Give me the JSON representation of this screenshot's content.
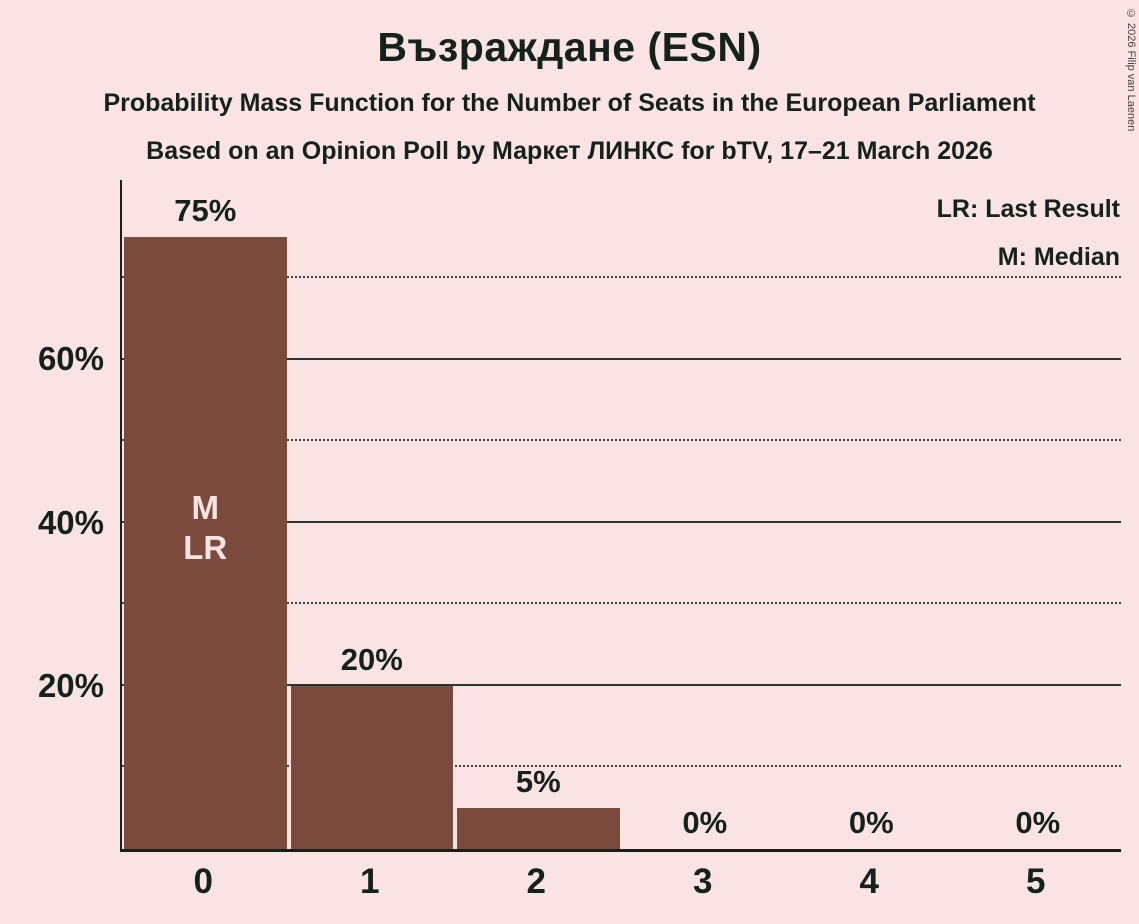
{
  "header": {
    "title": "Възраждане (ESN)",
    "subtitle1": "Probability Mass Function for the Number of Seats in the European Parliament",
    "subtitle2": "Based on an Opinion Poll by Маркет ЛИНКС for bTV, 17–21 March 2026"
  },
  "legend": {
    "lr_label": "LR: Last Result",
    "m_label": "M: Median"
  },
  "copyright": "© 2026 Filip van Laenen",
  "colors": {
    "background": "#fae3e3",
    "bar": "#7a4a3c",
    "text": "#13221a",
    "bar_label": "#fae3e3"
  },
  "chart_data": {
    "type": "bar",
    "title": "Възраждане (ESN)",
    "categories": [
      "0",
      "1",
      "2",
      "3",
      "4",
      "5"
    ],
    "values": [
      75,
      20,
      5,
      0,
      0,
      0
    ],
    "value_labels": [
      "75%",
      "20%",
      "5%",
      "0%",
      "0%",
      "0%"
    ],
    "annotations": [
      {
        "category": "0",
        "lines": [
          "M",
          "LR"
        ]
      }
    ],
    "yticks": [
      {
        "value": 20,
        "label": "20%"
      },
      {
        "value": 40,
        "label": "40%"
      },
      {
        "value": 60,
        "label": "60%"
      }
    ],
    "grid_dotted": [
      10,
      30,
      50,
      70
    ],
    "ylim": [
      0,
      82
    ],
    "grid": true,
    "legend_position": "top-right"
  }
}
